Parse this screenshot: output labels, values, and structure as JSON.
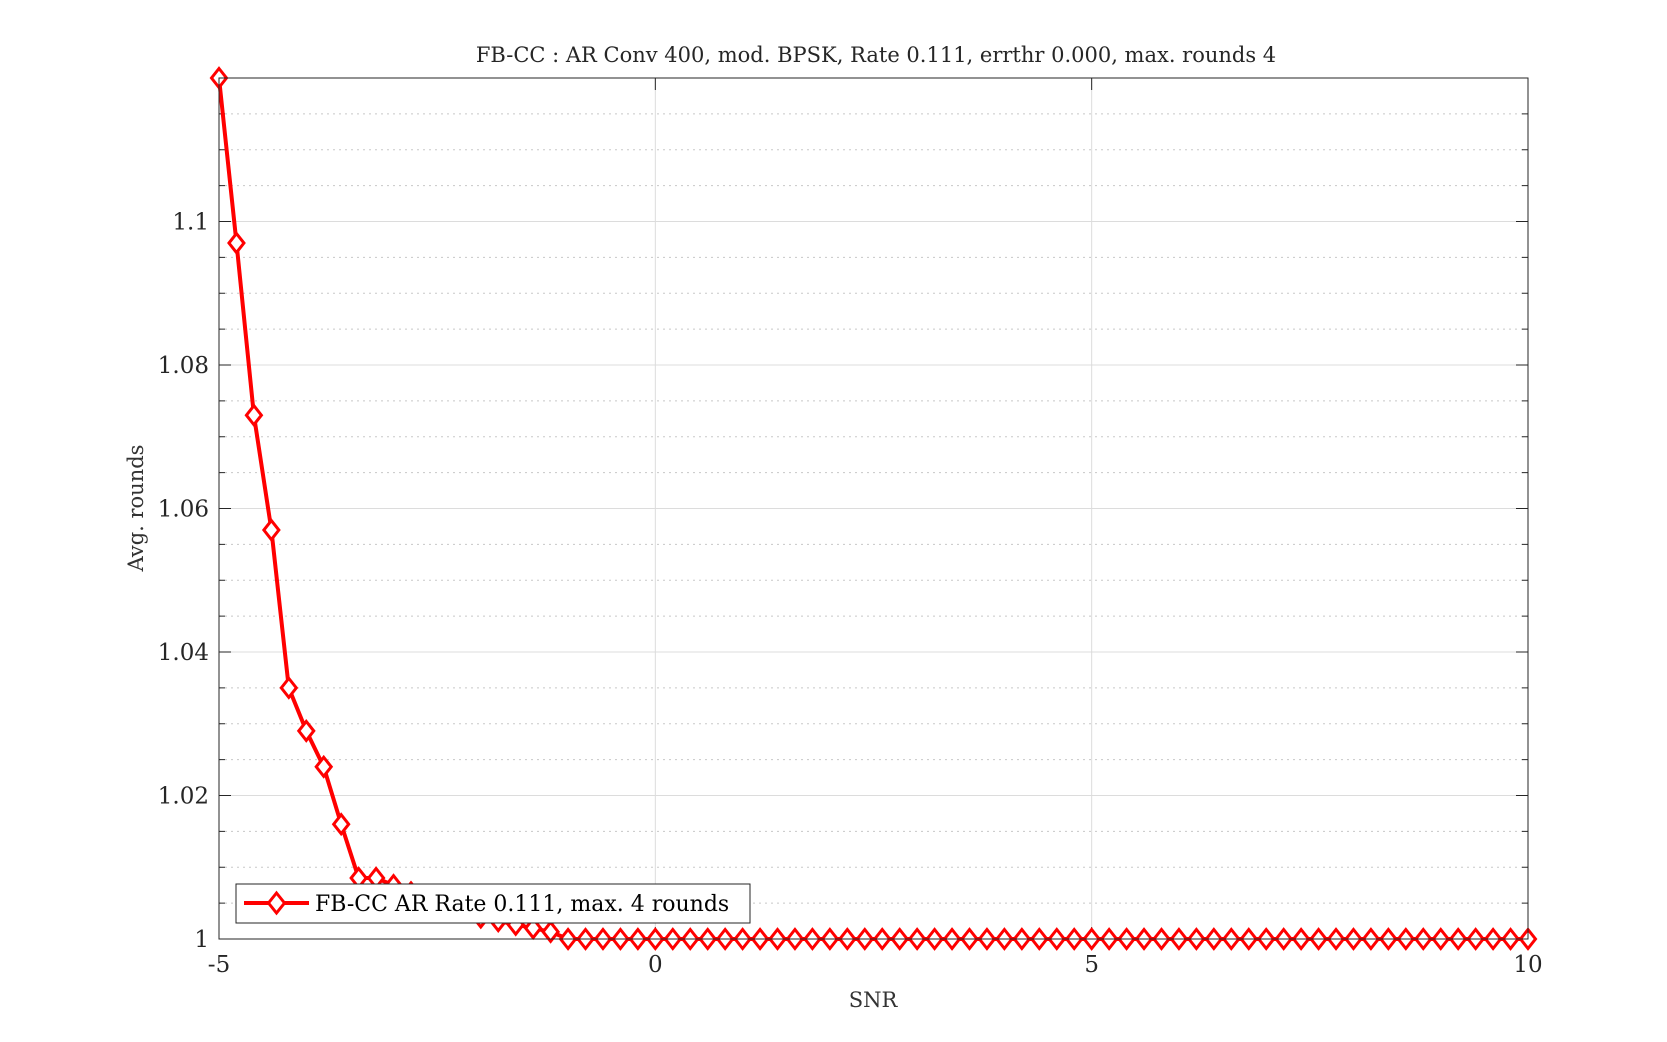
{
  "chart_data": {
    "type": "line",
    "title": "FB-CC : AR Conv 400, mod. BPSK, Rate 0.111, errthr 0.000, max. rounds 4",
    "xlabel": "SNR",
    "ylabel": "Avg. rounds",
    "xlim": [
      -5,
      10
    ],
    "ylim": [
      1,
      1.12
    ],
    "xticks": [
      -5,
      0,
      5,
      10
    ],
    "xtick_labels": [
      "-5",
      "0",
      "5",
      "10"
    ],
    "yticks": [
      1,
      1.02,
      1.04,
      1.06,
      1.08,
      1.1
    ],
    "ytick_labels": [
      "1",
      "1.02",
      "1.04",
      "1.06",
      "1.08",
      "1.1"
    ],
    "grid": true,
    "minor_grid_y": true,
    "legend_position": "bottom-left",
    "series": [
      {
        "name": "FB-CC AR Rate 0.111, max. 4 rounds",
        "color": "#ff0000",
        "marker": "diamond",
        "x": [
          -5,
          -4.8,
          -4.6,
          -4.4,
          -4.2,
          -4,
          -3.8,
          -3.6,
          -3.4,
          -3.2,
          -3,
          -2.8,
          -2.6,
          -2.4,
          -2.2,
          -2,
          -1.8,
          -1.6,
          -1.4,
          -1.2,
          -1,
          -0.8,
          -0.6,
          -0.4,
          -0.2,
          0,
          0.2,
          0.4,
          0.6,
          0.8,
          1,
          1.2,
          1.4,
          1.6,
          1.8,
          2,
          2.2,
          2.4,
          2.6,
          2.8,
          3,
          3.2,
          3.4,
          3.6,
          3.8,
          4,
          4.2,
          4.4,
          4.6,
          4.8,
          5,
          5.2,
          5.4,
          5.6,
          5.8,
          6,
          6.2,
          6.4,
          6.6,
          6.8,
          7,
          7.2,
          7.4,
          7.6,
          7.8,
          8,
          8.2,
          8.4,
          8.6,
          8.8,
          9,
          9.2,
          9.4,
          9.6,
          9.8,
          10
        ],
        "y": [
          1.12,
          1.097,
          1.073,
          1.057,
          1.035,
          1.029,
          1.024,
          1.016,
          1.0085,
          1.0085,
          1.0075,
          1.0065,
          1.006,
          1.005,
          1.0045,
          1.003,
          1.0025,
          1.002,
          1.0015,
          1.001,
          1,
          1,
          1,
          1,
          1,
          1,
          1,
          1,
          1,
          1,
          1,
          1,
          1,
          1,
          1,
          1,
          1,
          1,
          1,
          1,
          1,
          1,
          1,
          1,
          1,
          1,
          1,
          1,
          1,
          1,
          1,
          1,
          1,
          1,
          1,
          1,
          1,
          1,
          1,
          1,
          1,
          1,
          1,
          1,
          1,
          1,
          1,
          1,
          1,
          1,
          1,
          1,
          1,
          1,
          1,
          1
        ]
      }
    ]
  }
}
